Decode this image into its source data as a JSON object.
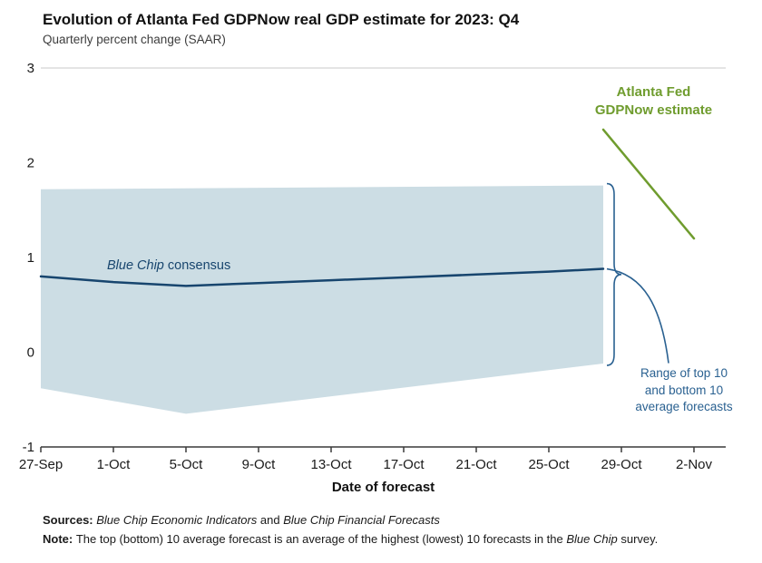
{
  "chart_data": {
    "type": "line",
    "title": "Evolution of Atlanta Fed GDPNow real GDP estimate for 2023: Q4",
    "subtitle": "Quarterly percent change (SAAR)",
    "xlabel": "Date of forecast",
    "ylabel": "",
    "ylim": [
      -1,
      3
    ],
    "y_ticks": [
      3,
      2,
      1,
      0,
      -1
    ],
    "x_ticks": [
      "27-Sep",
      "1-Oct",
      "5-Oct",
      "9-Oct",
      "13-Oct",
      "17-Oct",
      "21-Oct",
      "25-Oct",
      "29-Oct",
      "2-Nov"
    ],
    "grid": "top-border-only",
    "legend_position": "annotations-on-chart",
    "series": [
      {
        "name": "Atlanta Fed GDPNow estimate",
        "color": "#6f9c2e",
        "points": [
          [
            "28-Oct",
            2.35
          ],
          [
            "2-Nov",
            1.2
          ]
        ]
      },
      {
        "name": "Blue Chip consensus",
        "color": "#17456e",
        "points": [
          [
            "27-Sep",
            0.8
          ],
          [
            "1-Oct",
            0.74
          ],
          [
            "5-Oct",
            0.7
          ],
          [
            "9-Oct",
            0.73
          ],
          [
            "13-Oct",
            0.76
          ],
          [
            "17-Oct",
            0.79
          ],
          [
            "21-Oct",
            0.82
          ],
          [
            "25-Oct",
            0.85
          ],
          [
            "28-Oct",
            0.88
          ]
        ]
      }
    ],
    "band": {
      "name": "Range of top 10 and bottom 10 average forecasts",
      "color": "#ccdde4",
      "top": [
        [
          "27-Sep",
          1.72
        ],
        [
          "28-Oct",
          1.76
        ]
      ],
      "bottom": [
        [
          "27-Sep",
          -0.38
        ],
        [
          "5-Oct",
          -0.65
        ],
        [
          "28-Oct",
          -0.12
        ]
      ]
    },
    "annotations": {
      "gdpnow_label_lines": [
        "Atlanta Fed",
        "GDPNow estimate"
      ],
      "consensus_label_italic": "Blue Chip",
      "consensus_label_rest": " consensus",
      "range_label_lines": [
        "Range of top 10",
        "and bottom 10",
        "average forecasts"
      ]
    }
  },
  "footer": {
    "sources_prefix": "Sources: ",
    "sources_italic1": "Blue Chip Economic Indicators",
    "sources_mid": " and ",
    "sources_italic2": "Blue Chip Financial Forecasts",
    "note_prefix": "Note: ",
    "note_text1": "The top (bottom) 10 average forecast is an average of the highest (lowest) 10 forecasts in the ",
    "note_italic": "Blue Chip",
    "note_text2": " survey."
  },
  "colors": {
    "gdpnow_green": "#6f9c2e",
    "consensus_blue": "#17456e",
    "annotation_blue": "#2a6191",
    "band_fill": "#ccdde4",
    "axis_line": "#3a3a3a",
    "top_gridline": "#c9c9c9",
    "text": "#1a1a1a"
  }
}
